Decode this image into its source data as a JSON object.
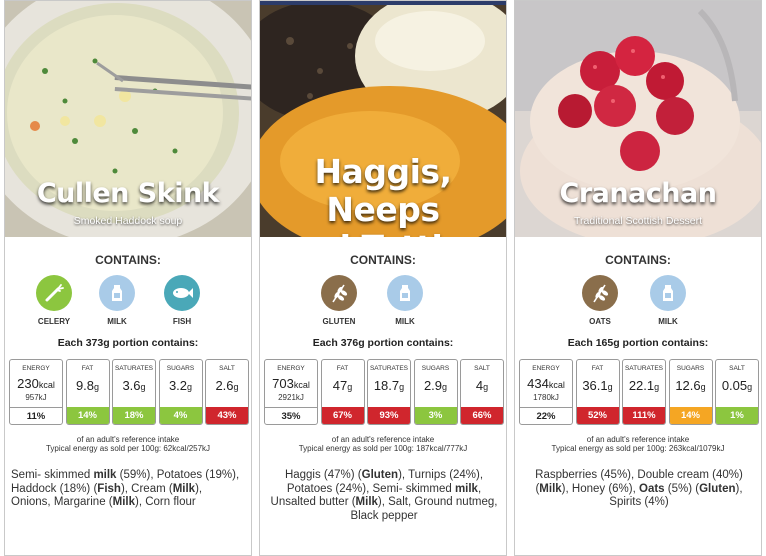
{
  "colors": {
    "low": "#8cc63f",
    "medium": "#f5a623",
    "high": "#d0262d",
    "plain": "#ffffff",
    "icon_celery": "#8cc63f",
    "icon_milk": "#a9cbe8",
    "icon_fish": "#4aa8b8",
    "icon_gluten": "#8a6e4b",
    "icon_oats": "#8a6e4b"
  },
  "cards": [
    {
      "title": "Cullen Skink",
      "subtitle": "Smoked Haddock soup",
      "contains_label": "CONTAINS:",
      "allergens": [
        {
          "label": "CELERY",
          "icon": "celery-icon",
          "color": "#8cc63f"
        },
        {
          "label": "MILK",
          "icon": "milk-icon",
          "color": "#a9cbe8"
        },
        {
          "label": "FISH",
          "icon": "fish-icon",
          "color": "#4aa8b8"
        }
      ],
      "portion": "Each 373g portion contains:",
      "energy": {
        "label": "ENERGY",
        "value": "230",
        "unit": "kcal",
        "kj": "957kJ",
        "pct": "11%",
        "level": "plain"
      },
      "nutrients": [
        {
          "label": "FAT",
          "value": "9.8",
          "unit": "g",
          "pct": "14%",
          "level": "low"
        },
        {
          "label": "SATURATES",
          "value": "3.6",
          "unit": "g",
          "pct": "18%",
          "level": "low"
        },
        {
          "label": "SUGARS",
          "value": "3.2",
          "unit": "g",
          "pct": "4%",
          "level": "low"
        },
        {
          "label": "SALT",
          "value": "2.6",
          "unit": "g",
          "pct": "43%",
          "level": "high"
        }
      ],
      "reference": "of an adult's reference intake",
      "typical": "Typical energy as sold per 100g: 62kcal/257kJ",
      "ingredients_html": "Semi- skimmed <b>milk</b> (59%), Potatoes (19%), Haddock (18%) (<b>Fish</b>), Cream (<b>Milk</b>), Onions, Margarine (<b>Milk</b>), Corn flour"
    },
    {
      "title_line1": "Haggis, Neeps",
      "title_line2": "and Tatties",
      "contains_label": "CONTAINS:",
      "allergens": [
        {
          "label": "GLUTEN",
          "icon": "wheat-icon",
          "color": "#8a6e4b"
        },
        {
          "label": "MILK",
          "icon": "milk-icon",
          "color": "#a9cbe8"
        }
      ],
      "portion": "Each 376g portion contains:",
      "energy": {
        "label": "ENERGY",
        "value": "703",
        "unit": "kcal",
        "kj": "2921kJ",
        "pct": "35%",
        "level": "plain"
      },
      "nutrients": [
        {
          "label": "FAT",
          "value": "47",
          "unit": "g",
          "pct": "67%",
          "level": "high"
        },
        {
          "label": "SATURATES",
          "value": "18.7",
          "unit": "g",
          "pct": "93%",
          "level": "high"
        },
        {
          "label": "SUGARS",
          "value": "2.9",
          "unit": "g",
          "pct": "3%",
          "level": "low"
        },
        {
          "label": "SALT",
          "value": "4",
          "unit": "g",
          "pct": "66%",
          "level": "high"
        }
      ],
      "reference": "of an adult's reference intake",
      "typical": "Typical energy as sold per 100g: 187kcal/777kJ",
      "ingredients_html": "Haggis (47%) (<b>Gluten</b>), Turnips (24%), Potatoes (24%), Semi- skimmed <b>milk</b>, Unsalted butter (<b>Milk</b>), Salt, Ground nutmeg, Black pepper"
    },
    {
      "title": "Cranachan",
      "subtitle": "Traditional Scottish Dessert",
      "contains_label": "CONTAINS:",
      "allergens": [
        {
          "label": "OATS",
          "icon": "wheat-icon",
          "color": "#8a6e4b"
        },
        {
          "label": "MILK",
          "icon": "milk-icon",
          "color": "#a9cbe8"
        }
      ],
      "portion": "Each 165g portion contains:",
      "energy": {
        "label": "ENERGY",
        "value": "434",
        "unit": "kcal",
        "kj": "1780kJ",
        "pct": "22%",
        "level": "plain"
      },
      "nutrients": [
        {
          "label": "FAT",
          "value": "36.1",
          "unit": "g",
          "pct": "52%",
          "level": "high"
        },
        {
          "label": "SATURATES",
          "value": "22.1",
          "unit": "g",
          "pct": "111%",
          "level": "high"
        },
        {
          "label": "SUGARS",
          "value": "12.6",
          "unit": "g",
          "pct": "14%",
          "level": "medium"
        },
        {
          "label": "SALT",
          "value": "0.05",
          "unit": "g",
          "pct": "1%",
          "level": "low"
        }
      ],
      "reference": "of an adult's reference intake",
      "typical": "Typical energy as sold per 100g: 263kcal/1079kJ",
      "ingredients_html": "Raspberries (45%), Double cream (40%) (<b>Milk</b>), Honey (6%), <b>Oats</b> (5%) (<b>Gluten</b>), Spirits (4%)"
    }
  ]
}
